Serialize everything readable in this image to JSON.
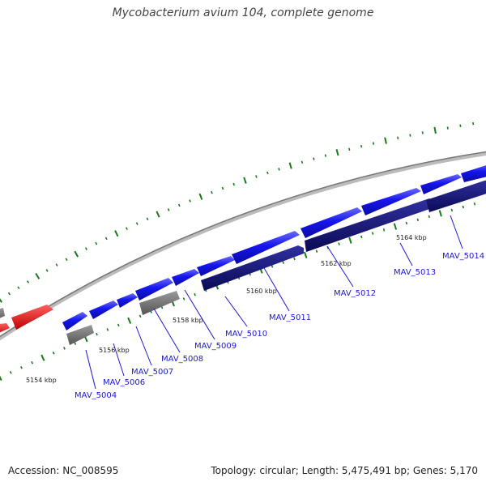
{
  "title": "Mycobacterium avium 104, complete genome",
  "footer": {
    "accession": "Accession: NC_008595",
    "topology": "Topology: circular; Length: 5,475,491 bp; Genes: 5,170"
  },
  "colors": {
    "forward_cds": "#1515ee",
    "reverse_cds": "#0f0f78",
    "rna": "#ee1111",
    "other": "#707070",
    "backbone": "#999999",
    "ticks": "#1a7a1a",
    "labels": "#1a1acc"
  },
  "scale_labels": [
    "5154 kbp",
    "5156 kbp",
    "5158 kbp",
    "5160 kbp",
    "5162 kbp",
    "5164 kbp"
  ],
  "genes": [
    "MAV_5004",
    "MAV_5006",
    "MAV_5007",
    "MAV_5008",
    "MAV_5009",
    "MAV_5010",
    "MAV_5011",
    "MAV_5012",
    "MAV_5013",
    "MAV_5014"
  ]
}
